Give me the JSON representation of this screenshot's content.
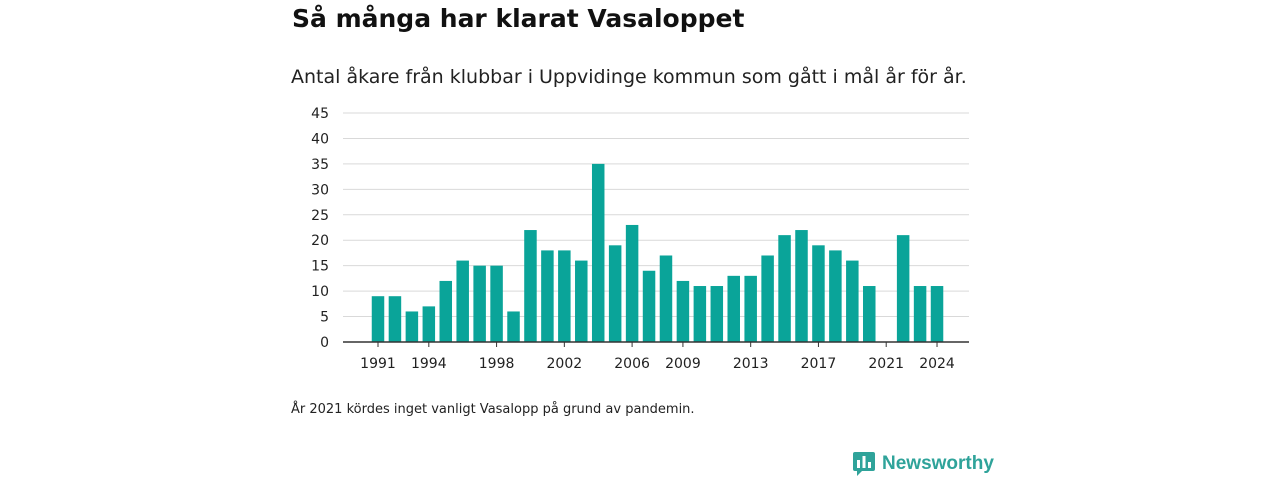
{
  "header": {
    "title": "Så många har klarat Vasaloppet",
    "subtitle": "Antal åkare från klubbar i Uppvidinge kommun som gått i mål år för år."
  },
  "footer": {
    "note": "År 2021 kördes inget vanligt Vasalopp på grund av pandemin.",
    "brand": "Newsworthy",
    "brand_icon": "bar-chart-speech-bubble-icon"
  },
  "colors": {
    "bar": "#0aa499",
    "grid": "#d9d9d9",
    "axis": "#333333",
    "brand": "#2fa39a"
  },
  "chart_data": {
    "type": "bar",
    "title": "Så många har klarat Vasaloppet",
    "subtitle": "Antal åkare från klubbar i Uppvidinge kommun som gått i mål år för år.",
    "categories": [
      1991,
      1992,
      1993,
      1994,
      1995,
      1996,
      1997,
      1998,
      1999,
      2000,
      2001,
      2002,
      2003,
      2004,
      2005,
      2006,
      2007,
      2008,
      2009,
      2010,
      2011,
      2012,
      2013,
      2014,
      2015,
      2016,
      2017,
      2018,
      2019,
      2020,
      2021,
      2022,
      2023,
      2024
    ],
    "values": [
      9,
      9,
      6,
      7,
      12,
      16,
      15,
      15,
      6,
      22,
      18,
      18,
      16,
      35,
      19,
      23,
      14,
      17,
      12,
      11,
      11,
      13,
      13,
      17,
      21,
      22,
      19,
      18,
      16,
      11,
      null,
      21,
      11,
      11
    ],
    "x_tick_labels": [
      "1991",
      "1994",
      "1998",
      "2002",
      "2006",
      "2009",
      "2013",
      "2017",
      "2021",
      "2024"
    ],
    "y_ticks": [
      0,
      5,
      10,
      15,
      20,
      25,
      30,
      35,
      40,
      45
    ],
    "ylim": [
      0,
      45
    ],
    "xlabel": "",
    "ylabel": "",
    "grid": true,
    "legend": "none"
  }
}
